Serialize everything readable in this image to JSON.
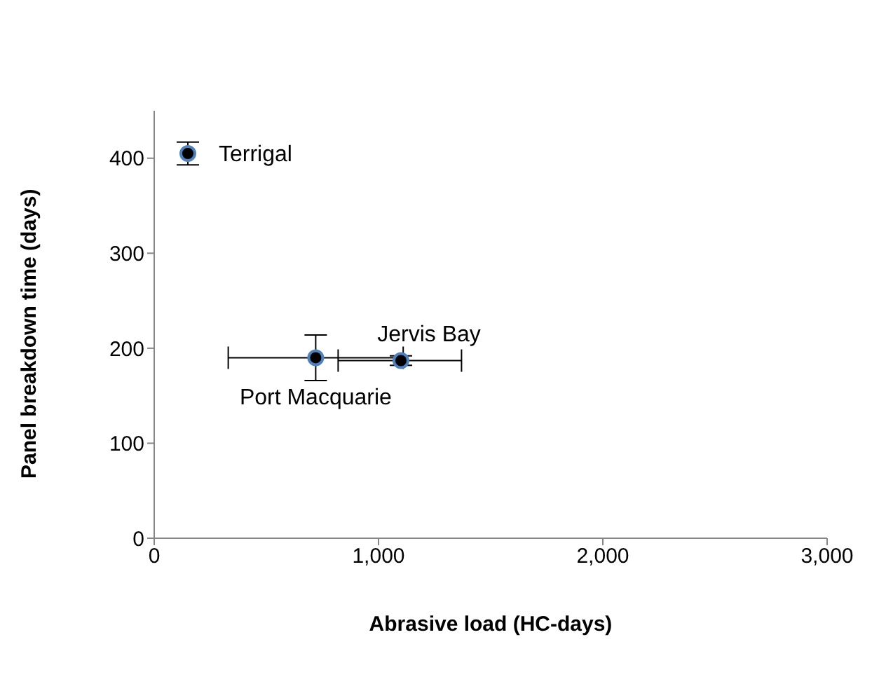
{
  "chart_data": {
    "type": "scatter",
    "xlabel": "Abrasive load (HC-days)",
    "ylabel": "Panel breakdown time (days)",
    "x": [
      150,
      720,
      1100
    ],
    "values": [
      405,
      190,
      187
    ],
    "errors": [
      12,
      24,
      5
    ],
    "xerrors": [
      null,
      [
        330,
        1110
      ],
      [
        820,
        1370
      ]
    ],
    "color": "#000000",
    "xlim": [
      0,
      3000
    ],
    "ylim": [
      0,
      450
    ],
    "xticks": [
      0,
      {
        "value": 1000,
        "label": "1,000"
      },
      {
        "value": 2000,
        "label": "2,000"
      },
      {
        "value": 3000,
        "label": "3,000"
      }
    ],
    "yticks": [
      0,
      100,
      200,
      300,
      400
    ],
    "marker": "circle",
    "grid": false,
    "legend": false,
    "annotations": [
      {
        "text": "Terrigal",
        "x": 150,
        "y": 405
      },
      {
        "text": "Port Macquarie",
        "x": 720,
        "y": 190
      },
      {
        "text": "Jervis Bay",
        "x": 1100,
        "y": 187
      }
    ]
  }
}
